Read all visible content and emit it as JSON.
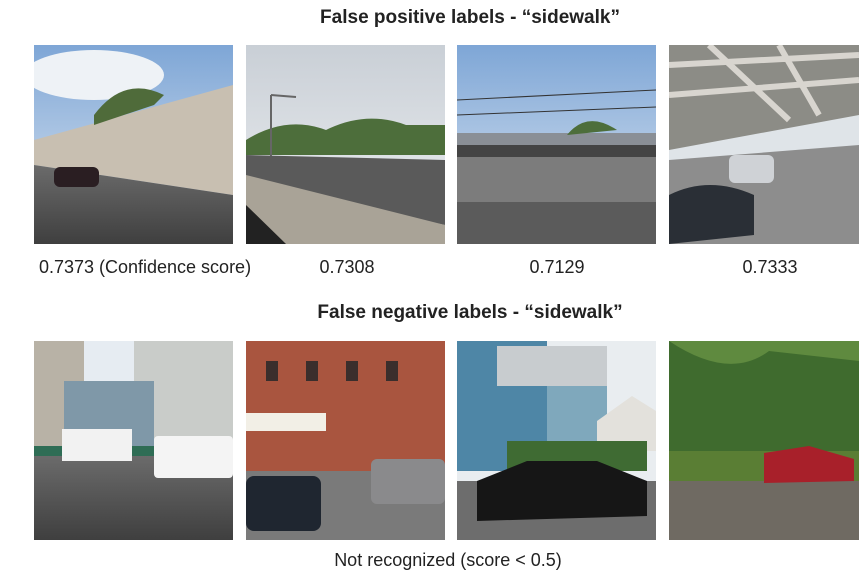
{
  "figure": {
    "sections": [
      {
        "title": "False positive labels - “sidewalk”",
        "images": [
          {
            "label": "0.7373 (Confidence score)"
          },
          {
            "label": "0.7308"
          },
          {
            "label": "0.7129"
          },
          {
            "label": "0.7333"
          }
        ]
      },
      {
        "title": "False negative labels - “sidewalk”",
        "caption": "Not recognized (score < 0.5)"
      }
    ]
  }
}
